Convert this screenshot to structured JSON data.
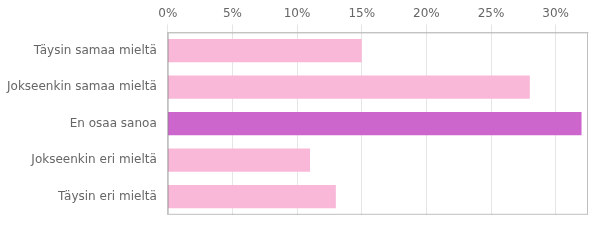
{
  "chart_data": {
    "type": "bar",
    "orientation": "horizontal",
    "categories": [
      "Täysin eri mieltä",
      "Jokseenkin eri mieltä",
      "En osaa sanoa",
      "Jokseenkin samaa mieltä",
      "Täysin samaa mieltä"
    ],
    "values": [
      13,
      11,
      32,
      28,
      15
    ],
    "colors": [
      "#f9b8d8",
      "#f9b8d8",
      "#cc66cc",
      "#f9b8d8",
      "#f9b8d8"
    ],
    "xlim": [
      0,
      32.5
    ],
    "xticks": [
      {
        "value": 0,
        "label": "0%"
      },
      {
        "value": 5,
        "label": "5%"
      },
      {
        "value": 10,
        "label": "10%"
      },
      {
        "value": 15,
        "label": "15%"
      },
      {
        "value": 20,
        "label": "20%"
      },
      {
        "value": 25,
        "label": "25%"
      },
      {
        "value": 30,
        "label": "30%"
      }
    ],
    "grid": true
  }
}
